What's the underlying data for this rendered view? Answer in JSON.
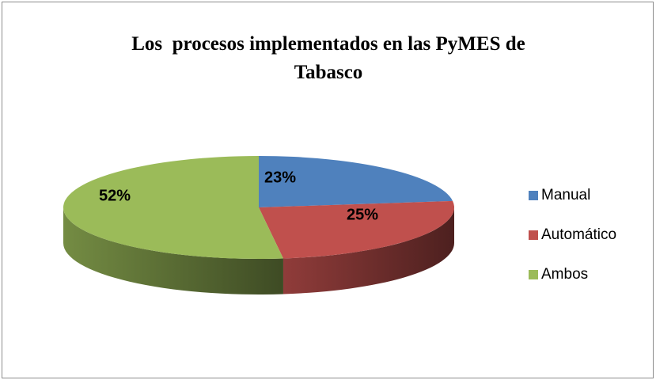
{
  "chart_data": {
    "type": "pie",
    "title": "Los  procesos implementados en las PyMES de Tabasco",
    "categories": [
      "Manual",
      "Automático",
      "Ambos"
    ],
    "values": [
      23,
      25,
      52
    ],
    "value_labels": [
      "23%",
      "25%",
      "52%"
    ],
    "colors": [
      "#4f81bd",
      "#c0504d",
      "#9bbb59"
    ],
    "legend": "right"
  }
}
